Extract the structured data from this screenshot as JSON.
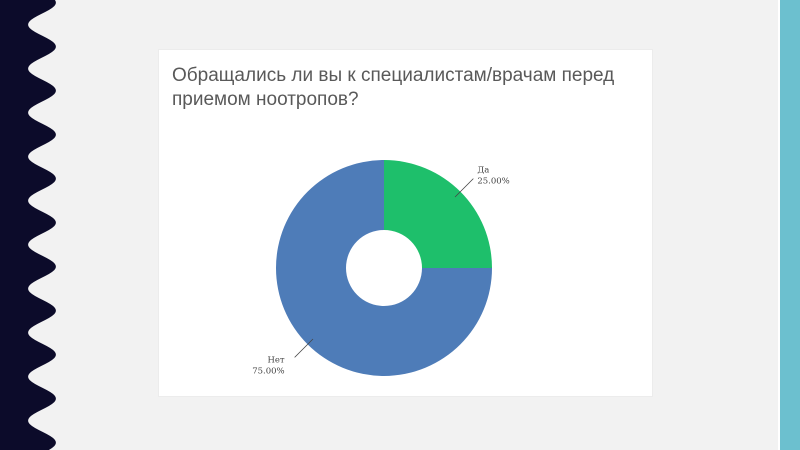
{
  "colors": {
    "background": "#f2f2f2",
    "left_band": "#0c0b2a",
    "right_accent": "#6cc0cf",
    "card": "#ffffff"
  },
  "chart_data": {
    "type": "pie",
    "donut": true,
    "title": "Обращались ли вы к специалистам/врачам перед приемом ноотропов?",
    "slices": [
      {
        "label": "Да",
        "value": 25.0,
        "value_label": "25.00%",
        "color": "#1ebf6b"
      },
      {
        "label": "Нет",
        "value": 75.0,
        "value_label": "75.00%",
        "color": "#4e7cb8"
      }
    ],
    "legend": "none",
    "label_position": "outside-with-leader-lines"
  }
}
